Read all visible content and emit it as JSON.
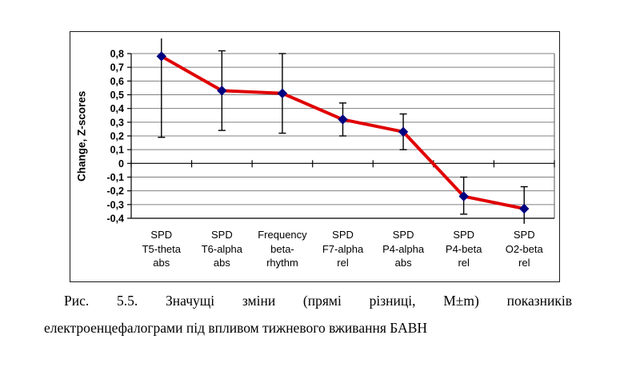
{
  "chart_data": {
    "type": "line",
    "title": "",
    "ylabel": "Change, Z-scores",
    "xlabel": "",
    "ylim": [
      -0.4,
      0.8
    ],
    "ytick_step": 0.1,
    "ytick_labels": [
      "0,8",
      "0,7",
      "0,6",
      "0,5",
      "0,4",
      "0,3",
      "0,2",
      "0,1",
      "0",
      "-0,1",
      "-0,2",
      "-0,3",
      "-0,4"
    ],
    "grid": true,
    "legend": "none",
    "categories": [
      [
        "SPD",
        "T5-theta",
        "abs"
      ],
      [
        "SPD",
        "T6-alpha",
        "abs"
      ],
      [
        "Frequency",
        "beta-",
        "rhythm"
      ],
      [
        "SPD",
        "F7-alpha",
        "rel"
      ],
      [
        "SPD",
        "P4-alpha",
        "abs"
      ],
      [
        "SPD",
        "P4-beta",
        "rel"
      ],
      [
        "SPD",
        "O2-beta",
        "rel"
      ]
    ],
    "series": [
      {
        "name": "Change, Z-scores",
        "values": [
          0.78,
          0.53,
          0.51,
          0.32,
          0.23,
          -0.24,
          -0.33
        ],
        "err_top": [
          0.91,
          0.82,
          0.8,
          0.44,
          0.36,
          -0.1,
          -0.17
        ],
        "err_bottom": [
          0.19,
          0.24,
          0.22,
          0.2,
          0.1,
          -0.37,
          -0.44
        ],
        "err_top_cap": [
          false,
          true,
          true,
          true,
          true,
          true,
          true
        ],
        "err_bottom_cap": [
          true,
          true,
          true,
          true,
          true,
          true,
          false
        ]
      }
    ],
    "colors": {
      "line": "#e00000",
      "marker": "#000080",
      "error_bar": "#000000",
      "gridline": "#808080",
      "axis": "#000000"
    }
  },
  "caption": {
    "line1": "Рис. 5.5. Значущі зміни (прямі різниці, М±m) показників",
    "line2": "електроенцефалограми під впливом тижневого вживання БАВН"
  }
}
